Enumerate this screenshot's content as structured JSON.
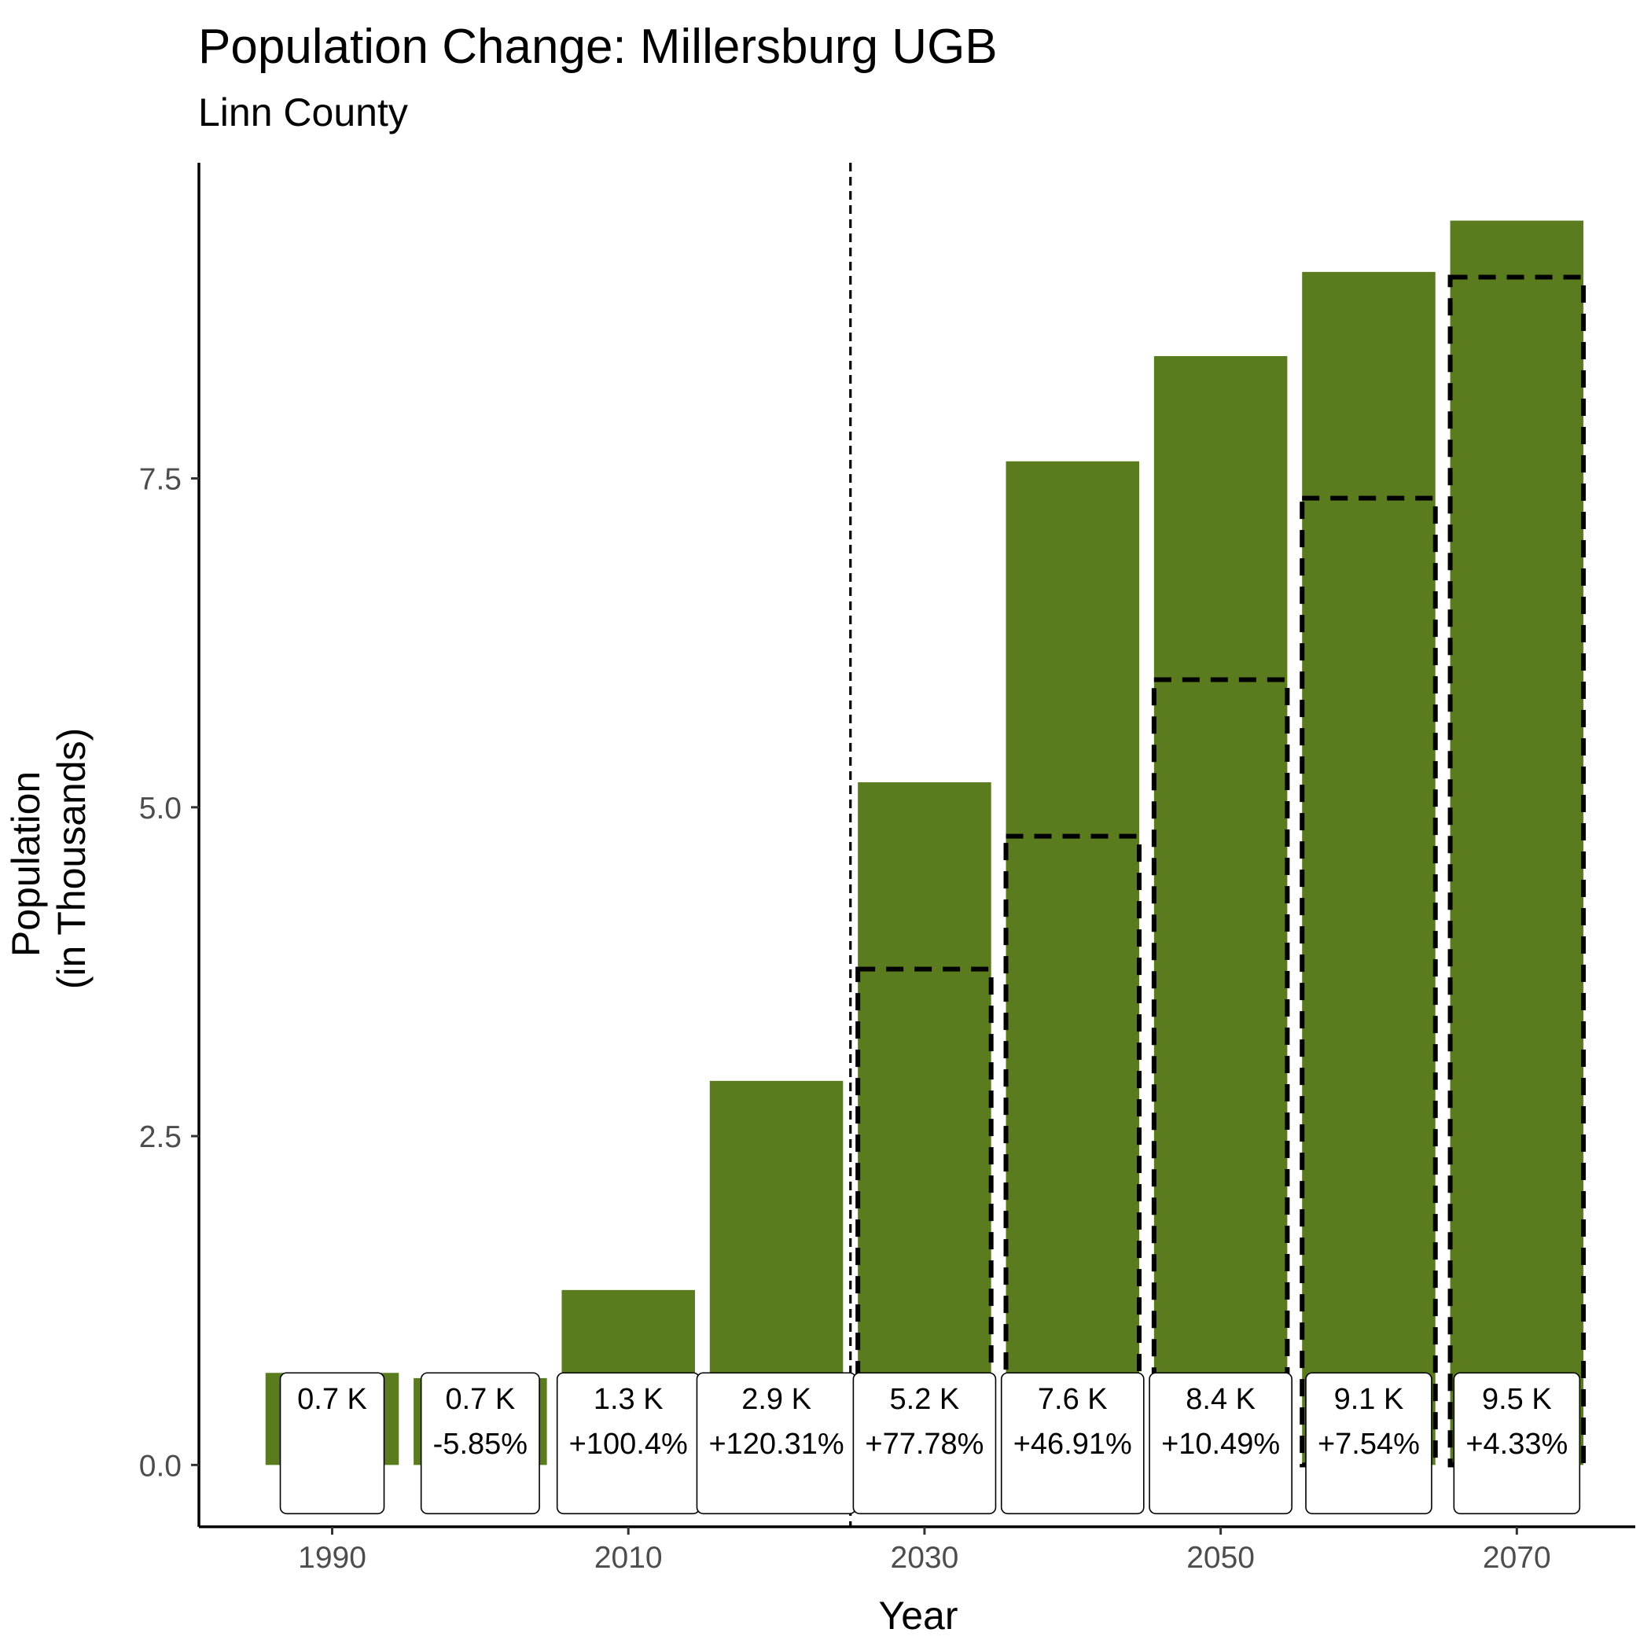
{
  "chart_data": {
    "type": "bar",
    "title": "Population Change: Millersburg UGB",
    "subtitle": "Linn County",
    "xlabel": "Year",
    "ylabel_lines": [
      "Population",
      "(in Thousands)"
    ],
    "categories": [
      1990,
      2000,
      2010,
      2020,
      2030,
      2040,
      2050,
      2060,
      2070
    ],
    "values": [
      0.7,
      0.66,
      1.33,
      2.92,
      5.19,
      7.63,
      8.43,
      9.07,
      9.46
    ],
    "previous_forecast": [
      null,
      null,
      null,
      null,
      3.77,
      4.78,
      5.97,
      7.35,
      9.03
    ],
    "value_labels": [
      "0.7 K",
      "0.7 K",
      "1.3 K",
      "2.9 K",
      "5.2 K",
      "7.6 K",
      "8.4 K",
      "9.1 K",
      "9.5 K"
    ],
    "change_labels": [
      "",
      "-5.85%",
      "+100.4%",
      "+120.31%",
      "+77.78%",
      "+46.91%",
      "+10.49%",
      "+7.54%",
      "+4.33%"
    ],
    "x_ticks": [
      1990,
      2010,
      2030,
      2050,
      2070
    ],
    "x_tick_labels": [
      "1990",
      "2010",
      "2030",
      "2050",
      "2070"
    ],
    "y_ticks": [
      0,
      2.5,
      5,
      7.5
    ],
    "y_tick_labels": [
      "0.0",
      "2.5",
      "5.0",
      "7.5"
    ],
    "xlim": [
      1981,
      2078
    ],
    "ylim": [
      -0.47,
      9.9
    ],
    "forecast_divider_year": 2025,
    "grid": false,
    "legend": "none",
    "bar_color": "#5a7c1e"
  }
}
